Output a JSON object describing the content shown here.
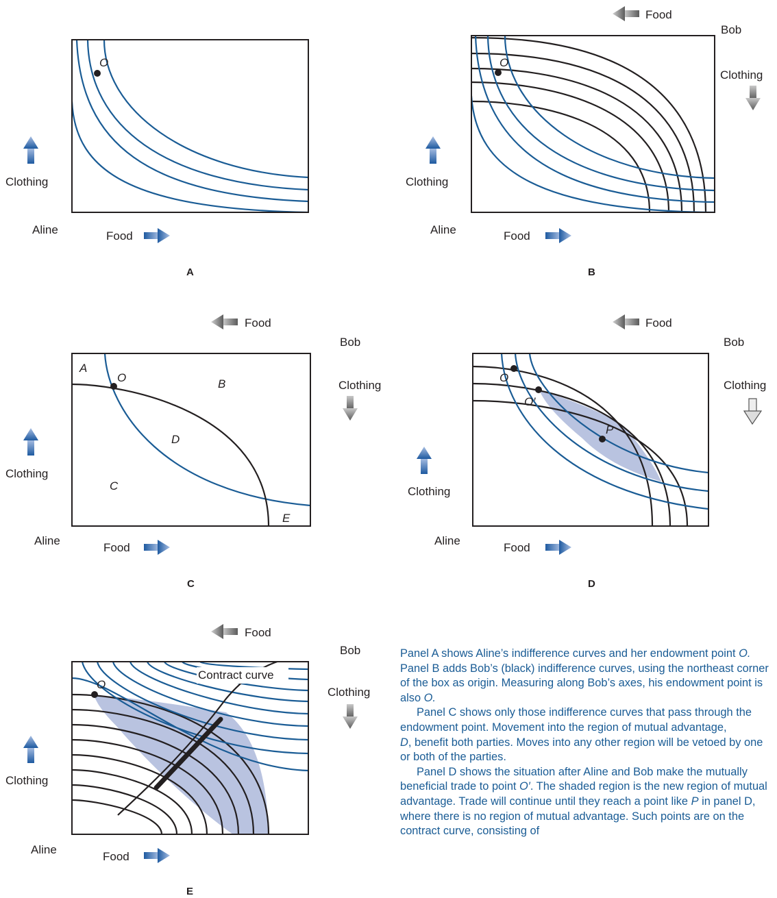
{
  "panels": {
    "A": {
      "letter": "A",
      "point_label": "O",
      "aline": "Aline",
      "food": "Food",
      "clothing": "Clothing"
    },
    "B": {
      "letter": "B",
      "point_label": "O",
      "aline": "Aline",
      "food": "Food",
      "clothing": "Clothing",
      "bob": "Bob",
      "bob_food": "Food",
      "bob_clothing": "Clothing"
    },
    "C": {
      "letter": "C",
      "point_label": "O",
      "aline": "Aline",
      "food": "Food",
      "clothing": "Clothing",
      "bob": "Bob",
      "bob_food": "Food",
      "bob_clothing": "Clothing",
      "regions": {
        "A": "A",
        "B": "B",
        "C": "C",
        "D": "D",
        "E": "E"
      }
    },
    "D": {
      "letter": "D",
      "point_label": "O",
      "point_label_2": "O′",
      "point_label_3": "P",
      "aline": "Aline",
      "food": "Food",
      "clothing": "Clothing",
      "bob": "Bob",
      "bob_food": "Food",
      "bob_clothing": "Clothing"
    },
    "E": {
      "letter": "E",
      "point_label": "O",
      "contract_curve": "Contract curve",
      "aline": "Aline",
      "food": "Food",
      "clothing": "Clothing",
      "bob": "Bob",
      "bob_food": "Food",
      "bob_clothing": "Clothing"
    }
  },
  "colors": {
    "aline_curves": "#1a5c95",
    "bob_curves": "#231f20",
    "shaded_region": "#b9c3e0",
    "caption": "#1a5c95"
  },
  "caption": {
    "p1_a": "Panel A shows Aline’s indifference curves and her endowment point ",
    "p1_b": "O.",
    "p1_c": " Panel B adds Bob’s (black) indifference curves, using the northeast corner of the box as origin. Measuring along Bob’s axes, his endowment point is also ",
    "p1_d": "O.",
    "p2_a": "Panel C shows only those indifference curves that pass through the endowment point. Movement into the region of mutual advantage, ",
    "p2_b": "D",
    "p2_c": ", benefit both parties. Moves into any other region will be vetoed by one or both of the parties.",
    "p3_a": "Panel D shows the situation after Aline and Bob make the mutually beneficial trade to point ",
    "p3_b": "O′",
    "p3_c": ". The shaded region is the new region of mutual advantage. Trade will continue until they reach a point like ",
    "p3_d": "P",
    "p3_e": " in panel D, where there is no region of mutual advantage. Such points are on the contract curve, consisting of"
  }
}
